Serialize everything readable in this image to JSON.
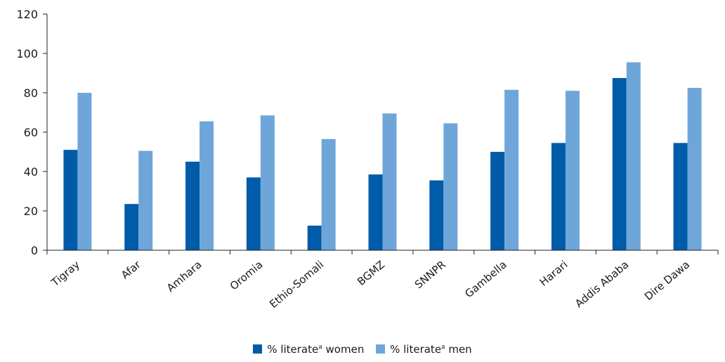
{
  "chart_data": {
    "type": "bar",
    "categories": [
      "Tigray",
      "Afar",
      "Amhara",
      "Oromia",
      "Ethio-Somali",
      "BGMZ",
      "SNNPR",
      "Gambella",
      "Harari",
      "Addis Ababa",
      "Dire Dawa"
    ],
    "series": [
      {
        "name": "% literate",
        "name_sup": "a",
        "name_suffix": "women",
        "color": "#005ba8",
        "values": [
          51,
          23.5,
          45,
          37,
          12.5,
          38.5,
          35.5,
          50,
          54.5,
          87.5,
          54.5
        ]
      },
      {
        "name": "% literate",
        "name_sup": "a",
        "name_suffix": "men",
        "color": "#6fa6d9",
        "values": [
          80,
          50.5,
          65.5,
          68.5,
          56.5,
          69.5,
          64.5,
          81.5,
          81,
          95.5,
          82.5
        ]
      }
    ],
    "yticks": [
      0,
      20,
      40,
      60,
      80,
      100,
      120
    ],
    "ylim": [
      0,
      120
    ],
    "grid": false,
    "legend_position": "bottom-center"
  }
}
